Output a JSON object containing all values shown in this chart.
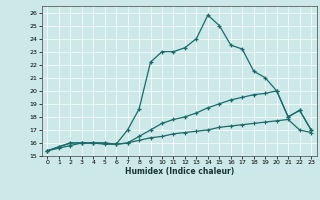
{
  "xlabel": "Humidex (Indice chaleur)",
  "xlim": [
    -0.5,
    23.5
  ],
  "ylim": [
    15,
    26.5
  ],
  "yticks": [
    15,
    16,
    17,
    18,
    19,
    20,
    21,
    22,
    23,
    24,
    25,
    26
  ],
  "xticks": [
    0,
    1,
    2,
    3,
    4,
    5,
    6,
    7,
    8,
    9,
    10,
    11,
    12,
    13,
    14,
    15,
    16,
    17,
    18,
    19,
    20,
    21,
    22,
    23
  ],
  "bg_color": "#cce8e8",
  "line_color": "#1a6b6b",
  "line1_x": [
    0,
    1,
    2,
    3,
    4,
    5,
    6,
    7,
    8,
    9,
    10,
    11,
    12,
    13,
    14,
    15,
    16,
    17,
    18,
    19,
    20,
    21,
    22,
    23
  ],
  "line1_y": [
    15.4,
    15.7,
    16.0,
    16.0,
    16.0,
    16.0,
    15.9,
    17.0,
    18.6,
    22.2,
    23.0,
    23.0,
    23.3,
    24.0,
    25.8,
    25.0,
    23.5,
    23.2,
    21.5,
    21.0,
    20.0,
    18.0,
    18.5,
    17.0
  ],
  "line2_x": [
    0,
    1,
    2,
    3,
    4,
    5,
    6,
    7,
    8,
    9,
    10,
    11,
    12,
    13,
    14,
    15,
    16,
    17,
    18,
    19,
    20,
    21,
    22,
    23
  ],
  "line2_y": [
    15.4,
    15.7,
    16.0,
    16.0,
    16.0,
    16.0,
    15.9,
    16.0,
    16.5,
    17.0,
    17.5,
    17.8,
    18.0,
    18.3,
    18.7,
    19.0,
    19.3,
    19.5,
    19.7,
    19.8,
    20.0,
    18.0,
    18.5,
    17.0
  ],
  "line3_x": [
    0,
    1,
    2,
    3,
    4,
    5,
    6,
    7,
    8,
    9,
    10,
    11,
    12,
    13,
    14,
    15,
    16,
    17,
    18,
    19,
    20,
    21,
    22,
    23
  ],
  "line3_y": [
    15.4,
    15.6,
    15.8,
    16.0,
    16.0,
    15.9,
    15.9,
    16.0,
    16.2,
    16.4,
    16.5,
    16.7,
    16.8,
    16.9,
    17.0,
    17.2,
    17.3,
    17.4,
    17.5,
    17.6,
    17.7,
    17.8,
    17.0,
    16.8
  ]
}
